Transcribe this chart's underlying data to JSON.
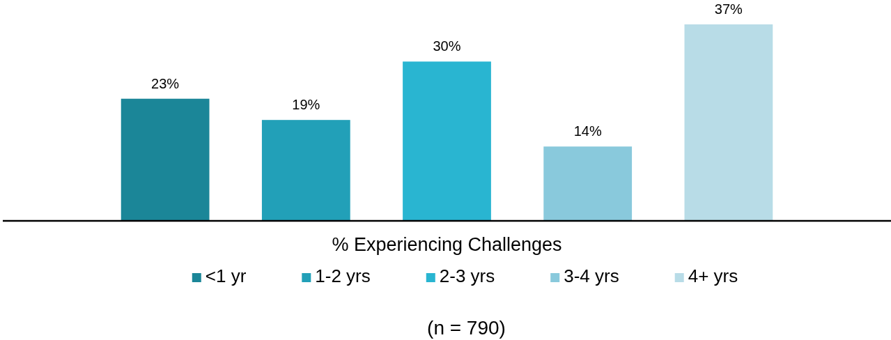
{
  "chart_data": {
    "type": "bar",
    "stacked": true,
    "xlabel": "% Experiencing Challenges",
    "categories": [
      null,
      null,
      null,
      null,
      null
    ],
    "series": [
      {
        "name": "<1 yr",
        "color": "#1b8698",
        "values": [
          23,
          null,
          null,
          null,
          null
        ],
        "value_labels": [
          "23%",
          null,
          null,
          null,
          null
        ]
      },
      {
        "name": "1-2 yrs",
        "color": "#22a0b8",
        "values": [
          null,
          19,
          null,
          null,
          null
        ],
        "value_labels": [
          null,
          "19%",
          null,
          null,
          null
        ]
      },
      {
        "name": "2-3 yrs",
        "color": "#29b5d1",
        "values": [
          null,
          null,
          30,
          null,
          null
        ],
        "value_labels": [
          null,
          null,
          "30%",
          null,
          null
        ]
      },
      {
        "name": "3-4 yrs",
        "color": "#89c9dc",
        "values": [
          null,
          null,
          null,
          14,
          null
        ],
        "value_labels": [
          null,
          null,
          null,
          "14%",
          null
        ]
      },
      {
        "name": "4+ yrs",
        "color": "#b8dce7",
        "values": [
          null,
          null,
          null,
          null,
          37
        ],
        "value_labels": [
          null,
          null,
          null,
          null,
          "37%"
        ]
      }
    ],
    "legend": "bottom",
    "annotations": [
      "(n = 790)"
    ]
  }
}
